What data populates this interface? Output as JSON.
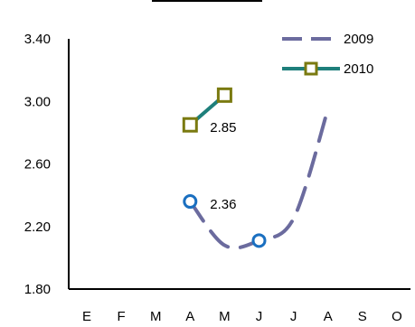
{
  "chart_data": {
    "type": "line",
    "categories": [
      "E",
      "F",
      "M",
      "A",
      "M",
      "J",
      "J",
      "A",
      "S",
      "O"
    ],
    "ylim": [
      1.8,
      3.4
    ],
    "yticks": [
      "1.80",
      "2.20",
      "2.60",
      "3.00",
      "3.40"
    ],
    "grid": false,
    "legend_position": "top-right",
    "series": [
      {
        "name": "2009",
        "color": "#6B6B9E",
        "line_style": "dashed",
        "values": [
          null,
          null,
          null,
          2.36,
          2.08,
          2.11,
          2.25,
          2.95,
          null,
          null
        ],
        "marker_indices": [
          3,
          5
        ],
        "marker_color": "#1A6FC0"
      },
      {
        "name": "2010",
        "color": "#1E7F7B",
        "line_style": "solid",
        "values": [
          null,
          null,
          null,
          2.85,
          3.04,
          null,
          null,
          null,
          null,
          null
        ],
        "marker_indices": [
          3,
          4
        ],
        "marker_color": "#7A7A10"
      }
    ],
    "data_labels": [
      {
        "text": "2.85",
        "series": 1,
        "index": 3
      },
      {
        "text": "2.36",
        "series": 0,
        "index": 3
      }
    ]
  }
}
